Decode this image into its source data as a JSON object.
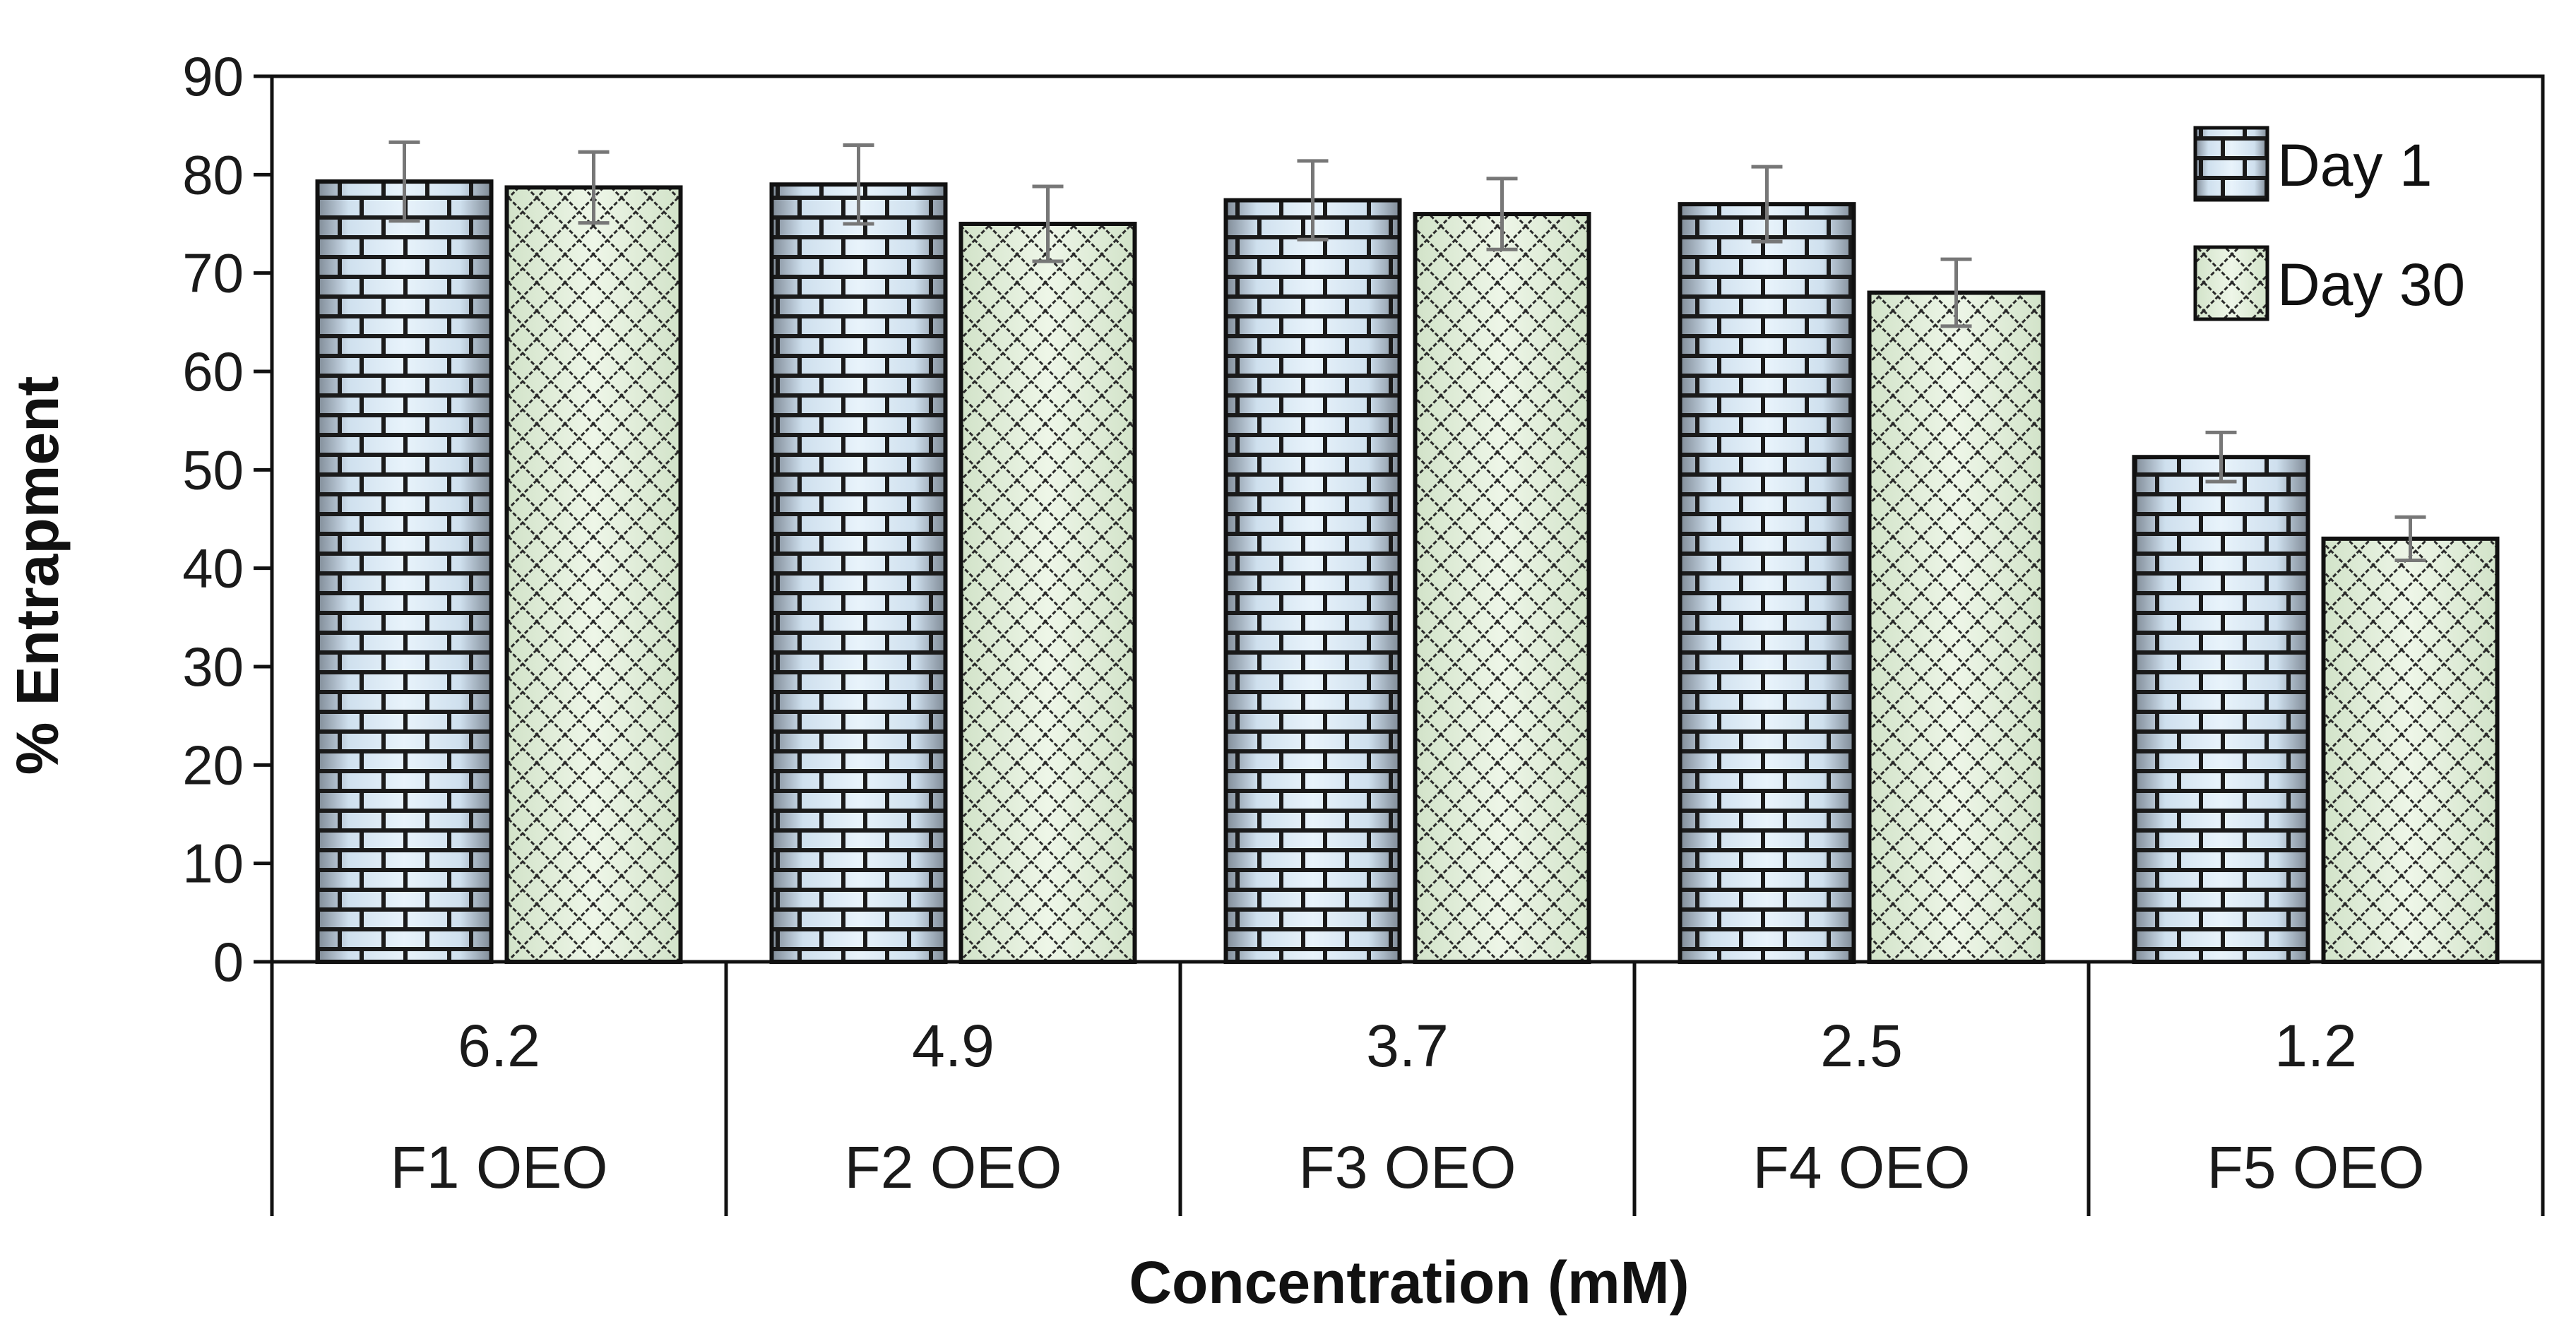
{
  "chart_data": {
    "type": "bar",
    "title": "",
    "xlabel": "Concentration (mM)",
    "ylabel": "% Entrapment",
    "ylim": [
      0,
      90
    ],
    "yticks": [
      0,
      10,
      20,
      30,
      40,
      50,
      60,
      70,
      80,
      90
    ],
    "categories": [
      {
        "concentration": "6.2",
        "formulation": "F1 OEO"
      },
      {
        "concentration": "4.9",
        "formulation": "F2 OEO"
      },
      {
        "concentration": "3.7",
        "formulation": "F3 OEO"
      },
      {
        "concentration": "2.5",
        "formulation": "F4 OEO"
      },
      {
        "concentration": "1.2",
        "formulation": "F5 OEO"
      }
    ],
    "series": [
      {
        "name": "Day 1",
        "values": [
          79.3,
          79.0,
          77.4,
          77.0,
          51.3
        ],
        "errors": [
          4.0,
          4.0,
          4.0,
          3.8,
          2.5
        ],
        "pattern": "brick"
      },
      {
        "name": "Day 30",
        "values": [
          78.7,
          75.0,
          76.0,
          68.0,
          43.0
        ],
        "errors": [
          3.6,
          3.8,
          3.6,
          3.4,
          2.2
        ],
        "pattern": "crosshatch"
      }
    ],
    "legend": "top-right",
    "grid": false
  }
}
